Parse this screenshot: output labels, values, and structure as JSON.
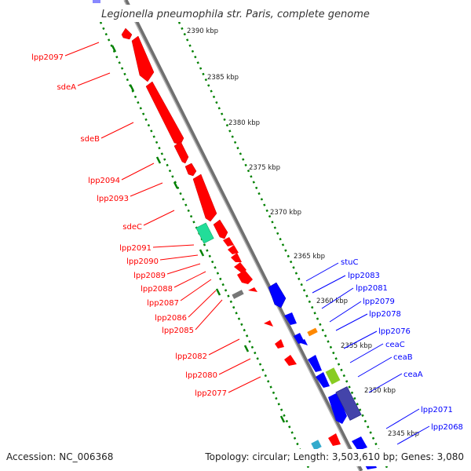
{
  "title": "Legionella pneumophila str. Paris, complete genome",
  "footer": {
    "accession": "Accession: NC_006368",
    "summary": "Topology: circular; Length: 3,503,610 bp; Genes: 3,080"
  },
  "colors": {
    "left_strand": "#ff0000",
    "right_strand": "#0000ff",
    "backbone": "#888888",
    "ruler": "#008000"
  },
  "ruler_labels": [
    "2390 kbp",
    "2385 kbp",
    "2380 kbp",
    "2375 kbp",
    "2370 kbp",
    "2365 kbp",
    "2360 kbp",
    "2355 kbp",
    "2350 kbp",
    "2345 kbp"
  ],
  "left_genes": [
    "lpp2097",
    "sdeA",
    "sdeB",
    "lpp2094",
    "lpp2093",
    "sdeC",
    "lpp2091",
    "lpp2090",
    "lpp2089",
    "lpp2088",
    "lpp2087",
    "lpp2086",
    "lpp2085",
    "lpp2082",
    "lpp2080",
    "lpp2077"
  ],
  "right_genes": [
    "stuC",
    "lpp2083",
    "lpp2081",
    "lpp2079",
    "lpp2078",
    "lpp2076",
    "ceaC",
    "ceaB",
    "ceaA",
    "lpp2071",
    "lpp2068"
  ]
}
